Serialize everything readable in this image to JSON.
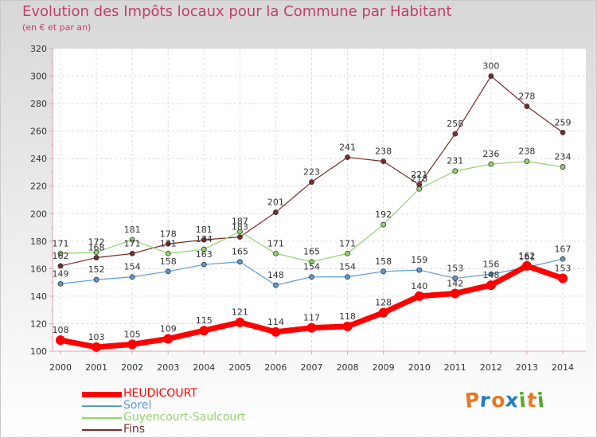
{
  "chart_data": {
    "type": "line",
    "title": "Evolution des Impôts locaux pour la Commune par Habitant",
    "subtitle": "(en € et par an)",
    "xlabel": "",
    "ylabel": "",
    "x": [
      "2000",
      "2001",
      "2002",
      "2003",
      "2004",
      "2005",
      "2006",
      "2007",
      "2008",
      "2009",
      "2010",
      "2011",
      "2012",
      "2013",
      "2014"
    ],
    "ylim": [
      100,
      320
    ],
    "yticks": [
      100,
      120,
      140,
      160,
      180,
      200,
      220,
      240,
      260,
      280,
      300,
      320
    ],
    "grid": true,
    "legend_position": "bottom-left",
    "series": [
      {
        "name": "HEUDICOURT",
        "color": "#ff0000",
        "values": [
          108,
          103,
          105,
          109,
          115,
          121,
          114,
          117,
          118,
          128,
          140,
          142,
          148,
          162,
          153
        ]
      },
      {
        "name": "Sorel",
        "color": "#5b9bd5",
        "values": [
          149,
          152,
          154,
          158,
          163,
          165,
          148,
          154,
          154,
          158,
          159,
          153,
          156,
          161,
          167
        ]
      },
      {
        "name": "Guyencourt-Saulcourt",
        "color": "#92d36e",
        "values": [
          171,
          172,
          181,
          171,
          174,
          187,
          171,
          165,
          171,
          192,
          218,
          231,
          236,
          238,
          234
        ]
      },
      {
        "name": "Fins",
        "color": "#7b2a2a",
        "values": [
          162,
          168,
          171,
          178,
          181,
          183,
          201,
          223,
          241,
          238,
          221,
          258,
          300,
          278,
          259
        ]
      }
    ],
    "data_labels": [
      [
        "108",
        "103",
        "105",
        "109",
        "115",
        "121",
        "114",
        "117",
        "118",
        "128",
        "140",
        "142",
        "148",
        "162",
        "153"
      ],
      [
        "149",
        "152",
        "154",
        "158",
        "163",
        "165",
        "148",
        "154",
        "154",
        "158",
        "159",
        "153",
        "156",
        "161",
        "167"
      ],
      [
        "171",
        "172",
        "181",
        "171",
        "174",
        "187",
        "171",
        "165",
        "171",
        "192",
        "218",
        "231",
        "236",
        "238",
        "234"
      ],
      [
        "162",
        "168",
        "171",
        "178",
        "181",
        "183",
        "201",
        "223",
        "241",
        "238",
        "221",
        "258",
        "300",
        "278",
        "259"
      ]
    ]
  },
  "logo": {
    "text": "Proxiti",
    "colors": [
      "#e87722",
      "#1f7fc4",
      "#e87722",
      "#1f7fc4",
      "#5aa832",
      "#e87722",
      "#5aa832"
    ]
  }
}
